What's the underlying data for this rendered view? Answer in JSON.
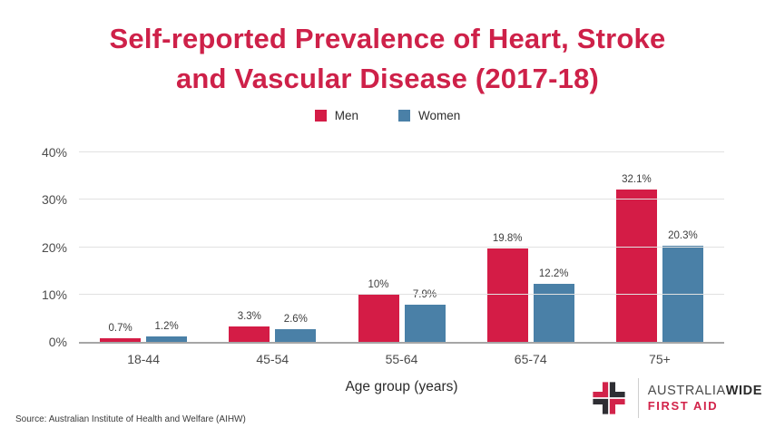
{
  "page": {
    "title_lines": [
      "Self-reported Prevalence of Heart, Stroke",
      "and Vascular Disease (2017-18)"
    ]
  },
  "chart_data": {
    "type": "bar",
    "title": "Self-reported Prevalence of Heart, Stroke and Vascular Disease (2017-18)",
    "categories": [
      "18-44",
      "45-54",
      "55-64",
      "65-74",
      "75+"
    ],
    "series": [
      {
        "name": "Men",
        "color": "#d41c46",
        "values": [
          0.7,
          3.3,
          10,
          19.8,
          32.1
        ],
        "labels": [
          "0.7%",
          "3.3%",
          "10%",
          "19.8%",
          "32.1%"
        ]
      },
      {
        "name": "Women",
        "color": "#4a80a7",
        "values": [
          1.2,
          2.6,
          7.9,
          12.2,
          20.3
        ],
        "labels": [
          "1.2%",
          "2.6%",
          "7.9%",
          "12.2%",
          "20.3%"
        ]
      }
    ],
    "xlabel": "Age group (years)",
    "ylabel": "",
    "ylim": [
      0,
      40
    ],
    "yticks": [
      "0%",
      "10%",
      "20%",
      "30%",
      "40%"
    ],
    "grid": true,
    "legend_position": "top-center"
  },
  "footer": {
    "source": "Source: Australian Institute of Health and Welfare (AIHW)",
    "logo": {
      "brand_name": "AUSTRALIA",
      "brand_name_bold": "WIDE",
      "brand_tagline": "FIRST AID",
      "red": "#d2234a",
      "dark": "#2e2e33"
    }
  },
  "colors": {
    "title": "#ce2149",
    "men": "#d41c46",
    "women": "#4a80a7",
    "gridline": "#e1e1e1",
    "axis_line": "#a6a6a6",
    "label_text": "#3d3d3d"
  }
}
